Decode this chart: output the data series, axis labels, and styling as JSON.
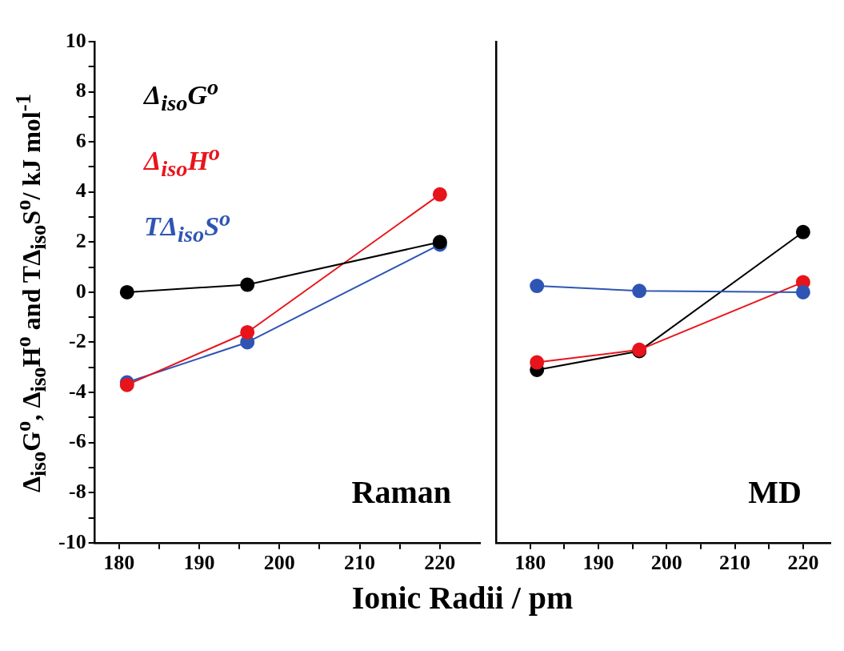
{
  "chart_data": [
    {
      "type": "line",
      "xlabel": "Ionic Radii / pm",
      "ylabel": "Δ$_{iso}$G$^{o}$, Δ$_{iso}$H$^{o}$ and TΔ$_{iso}$S$^{o}$/ kJ mol$^{-1}$",
      "xlim": [
        177,
        225
      ],
      "xticks": [
        180,
        {
          "value": 185,
          "label": null
        },
        190,
        {
          "value": 195,
          "label": null
        },
        200,
        {
          "value": 205,
          "label": null
        },
        210,
        {
          "value": 215,
          "label": null
        },
        220
      ],
      "ylim": [
        -10,
        10
      ],
      "yticks": [
        -10,
        {
          "value": -9,
          "label": null
        },
        -8,
        {
          "value": -7,
          "label": null
        },
        -6,
        {
          "value": -5,
          "label": null
        },
        -4,
        {
          "value": -3,
          "label": null
        },
        -2,
        {
          "value": -1,
          "label": null
        },
        0,
        {
          "value": 1,
          "label": null
        },
        2,
        {
          "value": 3,
          "label": null
        },
        4,
        {
          "value": 5,
          "label": null
        },
        6,
        {
          "value": 7,
          "label": null
        },
        8,
        {
          "value": 9,
          "label": null
        },
        10
      ],
      "grid": false,
      "legend": "top left",
      "marker": "circle",
      "annotations": [
        "Raman"
      ],
      "x": [
        181,
        196,
        220
      ],
      "series": [
        {
          "name": "Δ$_{iso}$G$^{o}$",
          "color": "#000000",
          "values": [
            0,
            0.3,
            2.0
          ]
        },
        {
          "name": "Δ$_{iso}$H$^{o}$",
          "color": "#e8141b",
          "values": [
            -3.7,
            -1.6,
            3.9
          ]
        },
        {
          "name": "TΔ$_{iso}$S$^{o}$",
          "color": "#2f55b4",
          "values": [
            -3.6,
            -2.0,
            1.9
          ]
        }
      ]
    },
    {
      "type": "line",
      "xlim": [
        175,
        224
      ],
      "xticks": [
        180,
        {
          "value": 185,
          "label": null
        },
        190,
        {
          "value": 195,
          "label": null
        },
        200,
        {
          "value": 205,
          "label": null
        },
        210,
        {
          "value": 215,
          "label": null
        },
        220
      ],
      "ylim": [
        -10,
        10
      ],
      "tick_labels": "x",
      "grid": false,
      "marker": "circle",
      "annotations": [
        "MD"
      ],
      "x": [
        181,
        196,
        220
      ],
      "series": [
        {
          "color": "#2f55b4",
          "values": [
            0.25,
            0.05,
            0.0
          ]
        },
        {
          "color": "#e8141b",
          "values": [
            -2.8,
            -2.3,
            0.4
          ]
        },
        {
          "color": "#000000",
          "values": [
            -3.1,
            -2.35,
            2.4
          ]
        }
      ]
    }
  ]
}
